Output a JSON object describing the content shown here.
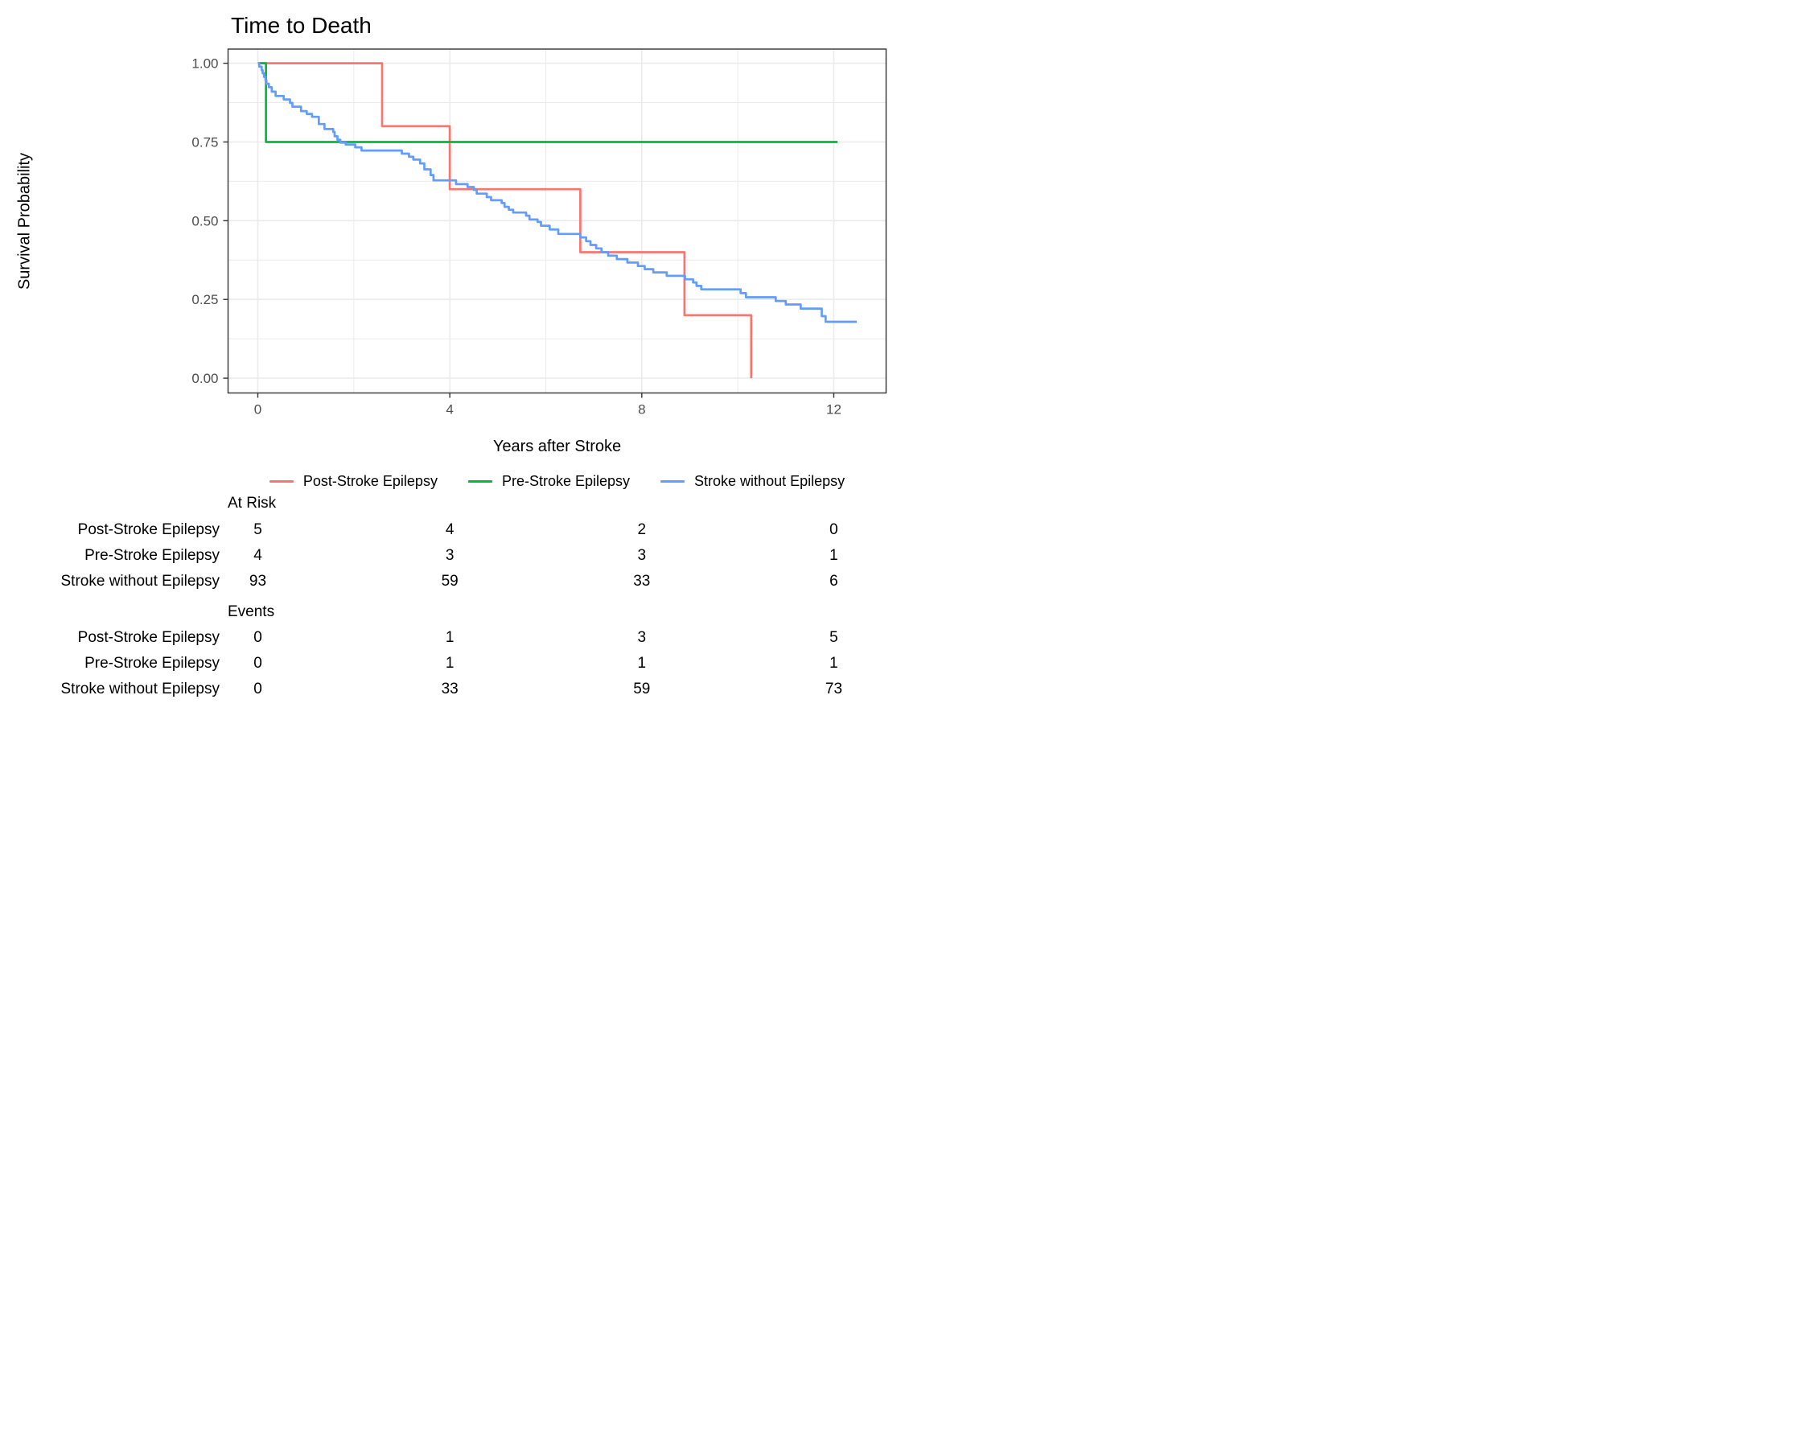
{
  "title": "Time to Death",
  "axes": {
    "x_label": "Years after Stroke",
    "y_label": "Survival Probability",
    "x_ticks": [
      {
        "v": 0,
        "label": "0"
      },
      {
        "v": 4,
        "label": "4"
      },
      {
        "v": 8,
        "label": "8"
      },
      {
        "v": 12,
        "label": "12"
      }
    ],
    "x_minor": [
      2,
      6,
      10
    ],
    "y_ticks": [
      {
        "v": 0,
        "label": "0.00"
      },
      {
        "v": 0.25,
        "label": "0.25"
      },
      {
        "v": 0.5,
        "label": "0.50"
      },
      {
        "v": 0.75,
        "label": "0.75"
      },
      {
        "v": 1,
        "label": "1.00"
      }
    ],
    "y_minor": [
      0.125,
      0.375,
      0.625,
      0.875
    ]
  },
  "colors": {
    "post_stroke": "#F8766D",
    "pre_stroke": "#00BA38",
    "no_epilepsy": "#619CFF",
    "grid": "#EBEBEB",
    "panel_border": "#333333",
    "tick_text": "#4D4D4D"
  },
  "legend": {
    "items": [
      {
        "label": "Post-Stroke Epilepsy",
        "color": "#F8766D"
      },
      {
        "label": "Pre-Stroke Epilepsy",
        "color": "#00BA38"
      },
      {
        "label": "Stroke without Epilepsy",
        "color": "#619CFF"
      }
    ]
  },
  "chart_data": {
    "type": "line",
    "subtype": "kaplan-meier-step",
    "title": "Time to Death",
    "xlabel": "Years after Stroke",
    "ylabel": "Survival Probability",
    "x_domain": [
      -0.62,
      13.09
    ],
    "y_domain": [
      -0.047,
      1.045
    ],
    "xlim_data": [
      0,
      12.5
    ],
    "ylim_data": [
      0,
      1
    ],
    "grid": true,
    "legend_position": "bottom",
    "series": [
      {
        "name": "Post-Stroke Epilepsy",
        "color": "#F8766D",
        "end_time": 10.28,
        "steps": [
          [
            0,
            1.0
          ],
          [
            2.59,
            0.8
          ],
          [
            4.0,
            0.6
          ],
          [
            6.72,
            0.4
          ],
          [
            8.89,
            0.2
          ],
          [
            10.28,
            0.0
          ]
        ]
      },
      {
        "name": "Pre-Stroke Epilepsy",
        "color": "#00BA38",
        "end_time": 12.08,
        "steps": [
          [
            0,
            1.0
          ],
          [
            0.17,
            0.75
          ]
        ]
      },
      {
        "name": "Stroke without Epilepsy",
        "color": "#619CFF",
        "end_time": 12.48,
        "steps": [
          [
            0,
            1.0
          ],
          [
            0.03,
            0.989
          ],
          [
            0.08,
            0.978
          ],
          [
            0.1,
            0.968
          ],
          [
            0.13,
            0.957
          ],
          [
            0.16,
            0.946
          ],
          [
            0.18,
            0.935
          ],
          [
            0.23,
            0.924
          ],
          [
            0.29,
            0.91
          ],
          [
            0.37,
            0.896
          ],
          [
            0.54,
            0.885
          ],
          [
            0.67,
            0.874
          ],
          [
            0.72,
            0.862
          ],
          [
            0.9,
            0.848
          ],
          [
            1.02,
            0.839
          ],
          [
            1.13,
            0.83
          ],
          [
            1.27,
            0.807
          ],
          [
            1.39,
            0.791
          ],
          [
            1.57,
            0.782
          ],
          [
            1.6,
            0.768
          ],
          [
            1.66,
            0.757
          ],
          [
            1.72,
            0.748
          ],
          [
            1.83,
            0.742
          ],
          [
            2.03,
            0.733
          ],
          [
            2.16,
            0.723
          ],
          [
            3.0,
            0.713
          ],
          [
            3.15,
            0.703
          ],
          [
            3.24,
            0.694
          ],
          [
            3.38,
            0.682
          ],
          [
            3.47,
            0.663
          ],
          [
            3.6,
            0.645
          ],
          [
            3.66,
            0.628
          ],
          [
            4.13,
            0.616
          ],
          [
            4.37,
            0.607
          ],
          [
            4.5,
            0.598
          ],
          [
            4.56,
            0.586
          ],
          [
            4.77,
            0.575
          ],
          [
            4.86,
            0.565
          ],
          [
            5.08,
            0.556
          ],
          [
            5.14,
            0.544
          ],
          [
            5.23,
            0.535
          ],
          [
            5.32,
            0.526
          ],
          [
            5.59,
            0.516
          ],
          [
            5.66,
            0.504
          ],
          [
            5.83,
            0.496
          ],
          [
            5.9,
            0.484
          ],
          [
            6.08,
            0.472
          ],
          [
            6.26,
            0.458
          ],
          [
            6.72,
            0.447
          ],
          [
            6.84,
            0.435
          ],
          [
            6.93,
            0.423
          ],
          [
            7.05,
            0.412
          ],
          [
            7.16,
            0.4
          ],
          [
            7.3,
            0.389
          ],
          [
            7.48,
            0.378
          ],
          [
            7.7,
            0.367
          ],
          [
            7.92,
            0.356
          ],
          [
            8.06,
            0.346
          ],
          [
            8.24,
            0.336
          ],
          [
            8.52,
            0.325
          ],
          [
            8.9,
            0.314
          ],
          [
            9.07,
            0.304
          ],
          [
            9.14,
            0.293
          ],
          [
            9.24,
            0.282
          ],
          [
            10.06,
            0.27
          ],
          [
            10.17,
            0.257
          ],
          [
            10.79,
            0.245
          ],
          [
            11.0,
            0.234
          ],
          [
            11.31,
            0.221
          ],
          [
            11.75,
            0.197
          ],
          [
            11.83,
            0.179
          ]
        ]
      }
    ]
  },
  "risk_table": {
    "time_points": [
      0,
      4,
      8,
      12
    ],
    "sections": [
      {
        "heading": "At Risk",
        "rows": [
          {
            "label": "Post-Stroke Epilepsy",
            "values": [
              "5",
              "4",
              "2",
              "0"
            ]
          },
          {
            "label": "Pre-Stroke Epilepsy",
            "values": [
              "4",
              "3",
              "3",
              "1"
            ]
          },
          {
            "label": "Stroke without Epilepsy",
            "values": [
              "93",
              "59",
              "33",
              "6"
            ]
          }
        ]
      },
      {
        "heading": "Events",
        "rows": [
          {
            "label": "Post-Stroke Epilepsy",
            "values": [
              "0",
              "1",
              "3",
              "5"
            ]
          },
          {
            "label": "Pre-Stroke Epilepsy",
            "values": [
              "0",
              "1",
              "1",
              "1"
            ]
          },
          {
            "label": "Stroke without Epilepsy",
            "values": [
              "0",
              "33",
              "59",
              "73"
            ]
          }
        ]
      }
    ]
  }
}
